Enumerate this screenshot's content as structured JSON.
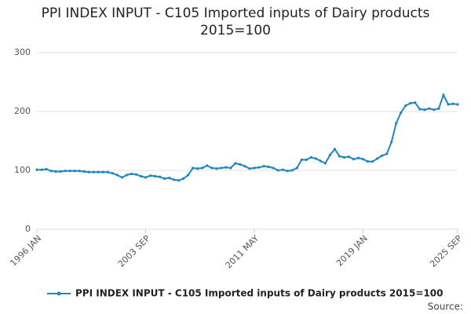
{
  "chart_data": {
    "type": "line",
    "title": "PPI INDEX INPUT - C105 Imported inputs of Dairy products 2015=100",
    "categories": [
      "1996 JAN",
      null,
      null,
      null,
      null,
      null,
      null,
      null,
      null,
      null,
      null,
      null,
      null,
      null,
      null,
      null,
      null,
      null,
      null,
      null,
      null,
      null,
      null,
      "2003 SEP",
      null,
      null,
      null,
      null,
      null,
      null,
      null,
      null,
      null,
      null,
      null,
      null,
      null,
      null,
      null,
      null,
      null,
      null,
      null,
      null,
      null,
      null,
      "2011 MAY",
      null,
      null,
      null,
      null,
      null,
      null,
      null,
      null,
      null,
      null,
      null,
      null,
      null,
      null,
      null,
      null,
      null,
      null,
      null,
      null,
      null,
      null,
      "2019 JAN",
      null,
      null,
      null,
      null,
      null,
      null,
      null,
      null,
      null,
      null,
      null,
      null,
      null,
      null,
      null,
      null,
      null,
      null,
      null,
      "2025 SEP"
    ],
    "series": [
      {
        "name": "PPI INDEX INPUT - C105 Imported inputs of Dairy products 2015=100",
        "color": "#1f86c0",
        "values": [
          101,
          101,
          102,
          99,
          98,
          98,
          99,
          99,
          99,
          99,
          98,
          97,
          97,
          97,
          97,
          97,
          95,
          92,
          88,
          92,
          94,
          93,
          90,
          88,
          91,
          90,
          89,
          86,
          87,
          84,
          83,
          86,
          92,
          104,
          103,
          104,
          108,
          104,
          103,
          104,
          105,
          104,
          112,
          110,
          107,
          103,
          104,
          105,
          107,
          106,
          104,
          100,
          101,
          99,
          100,
          104,
          118,
          118,
          122,
          120,
          116,
          112,
          126,
          136,
          124,
          122,
          123,
          119,
          121,
          119,
          115,
          115,
          120,
          125,
          128,
          148,
          180,
          198,
          210,
          214,
          215,
          204,
          203,
          205,
          203,
          205,
          228,
          212,
          213,
          212
        ]
      }
    ],
    "ylim": [
      0,
      300
    ],
    "yticks": [
      0,
      100,
      200,
      300
    ],
    "grid": true,
    "legend": "bottom",
    "source": "Source:"
  }
}
